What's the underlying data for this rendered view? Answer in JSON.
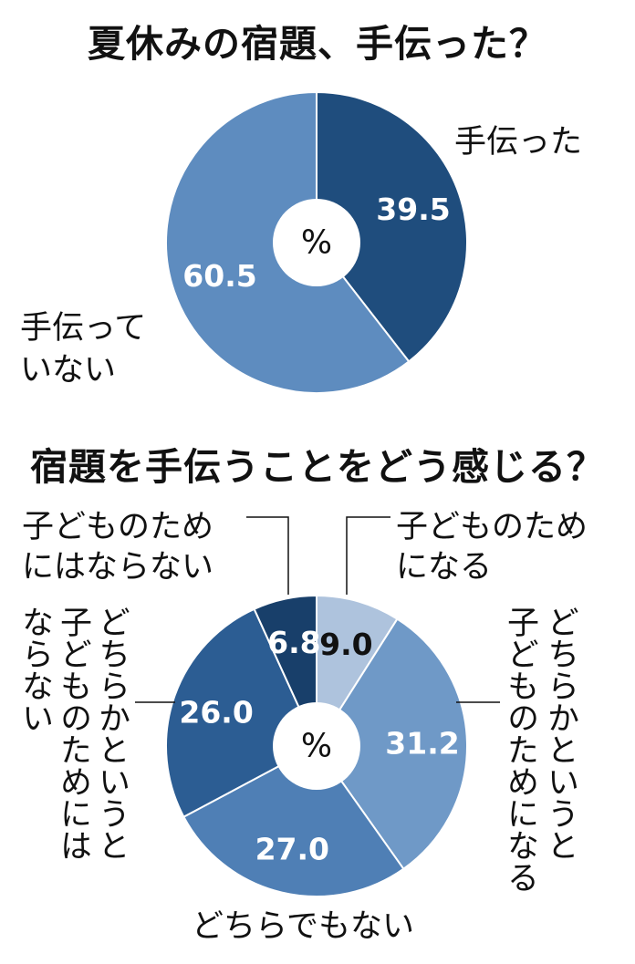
{
  "chart_data": [
    {
      "type": "pie",
      "title": "夏休みの宿題、手伝った？",
      "center_label": "%",
      "slices": [
        {
          "label": "手伝った",
          "value": 39.5,
          "value_label": "39.5",
          "color": "#1f4d7d"
        },
        {
          "label": "手伝っていない",
          "label_lines": [
            "手伝って",
            "いない"
          ],
          "value": 60.5,
          "value_label": "60.5",
          "color": "#5e8cbf"
        }
      ]
    },
    {
      "type": "pie",
      "title": "宿題を手伝うことをどう感じる？",
      "center_label": "%",
      "slices": [
        {
          "label": "子どものためになる",
          "label_lines": [
            "子どものため",
            "になる"
          ],
          "value": 9.0,
          "value_label": "9.0",
          "color": "#aec3dd"
        },
        {
          "label": "どちらかというと子どものためになる",
          "label_columns": [
            "どちらかというと",
            "子どものためになる"
          ],
          "value": 31.2,
          "value_label": "31.2",
          "color": "#6f99c7"
        },
        {
          "label": "どちらでもない",
          "value": 27.0,
          "value_label": "27.0",
          "color": "#4f7fb5"
        },
        {
          "label": "どちらかというと子どものためにはならない",
          "label_columns": [
            "どちらかというと",
            "子どものためには",
            "ならない"
          ],
          "value": 26.0,
          "value_label": "26.0",
          "color": "#2c5d93"
        },
        {
          "label": "子どものためにはならない",
          "label_lines": [
            "子どものため",
            "にはならない"
          ],
          "value": 6.8,
          "value_label": "6.8",
          "color": "#183f6a"
        }
      ]
    }
  ]
}
